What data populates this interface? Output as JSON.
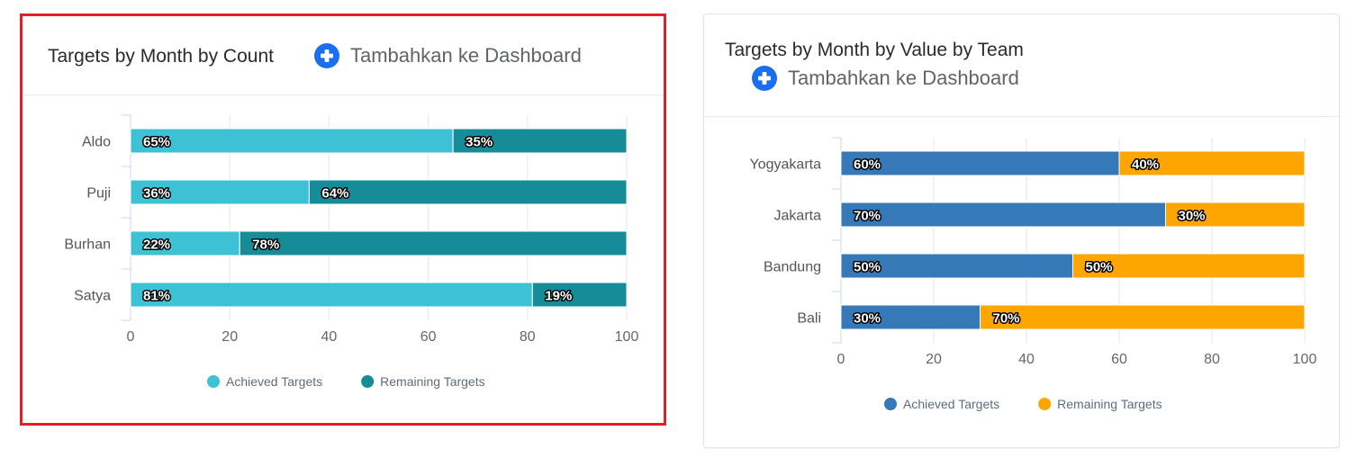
{
  "add_button_label": "Tambahkan ke Dashboard",
  "add_icon": "plus-circle-icon",
  "legend_labels": [
    "Achieved Targets",
    "Remaining Targets"
  ],
  "chart_data": [
    {
      "type": "bar",
      "orientation": "horizontal",
      "stacked": true,
      "title": "Targets by Month by Count",
      "categories": [
        "Aldo",
        "Puji",
        "Burhan",
        "Satya"
      ],
      "series": [
        {
          "name": "Achieved Targets",
          "values": [
            65,
            36,
            22,
            81
          ],
          "labels": [
            "65%",
            "36%",
            "22%",
            "81%"
          ],
          "color": "#3dc1d5"
        },
        {
          "name": "Remaining Targets",
          "values": [
            35,
            64,
            78,
            19
          ],
          "labels": [
            "35%",
            "64%",
            "78%",
            "19%"
          ],
          "color": "#158c97"
        }
      ],
      "xlim": [
        0,
        100
      ],
      "xticks": [
        "0",
        "20",
        "40",
        "60",
        "80",
        "100"
      ],
      "xlabel": "",
      "ylabel": "",
      "grid": true,
      "legend": "bottom-center",
      "highlighted": true,
      "highlight_color": "#e3202a"
    },
    {
      "type": "bar",
      "orientation": "horizontal",
      "stacked": true,
      "title": "Targets by Month by Value by Team",
      "categories": [
        "Yogyakarta",
        "Jakarta",
        "Bandung",
        "Bali"
      ],
      "series": [
        {
          "name": "Achieved Targets",
          "values": [
            60,
            70,
            50,
            30
          ],
          "labels": [
            "60%",
            "70%",
            "50%",
            "30%"
          ],
          "color": "#3579b8"
        },
        {
          "name": "Remaining Targets",
          "values": [
            40,
            30,
            50,
            70
          ],
          "labels": [
            "40%",
            "30%",
            "50%",
            "70%"
          ],
          "color": "#ffa500"
        }
      ],
      "xlim": [
        0,
        100
      ],
      "xticks": [
        "0",
        "20",
        "40",
        "60",
        "80",
        "100"
      ],
      "xlabel": "",
      "ylabel": "",
      "grid": true,
      "legend": "bottom-center",
      "highlighted": false
    }
  ]
}
